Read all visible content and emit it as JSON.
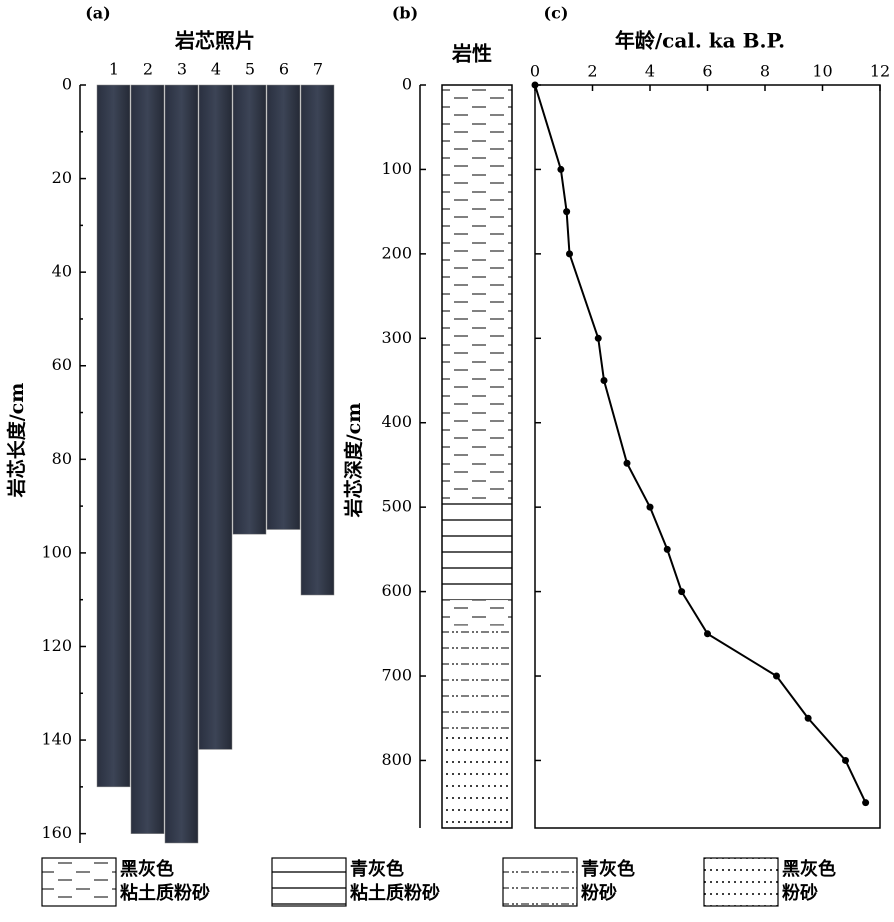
{
  "chart_data": [
    {
      "type": "core-photo",
      "panel_label": "(a)",
      "title": "岩芯照片",
      "ylabel": "岩芯长度/cm",
      "categories": [
        "1",
        "2",
        "3",
        "4",
        "5",
        "6",
        "7"
      ],
      "values": [
        150,
        160,
        162,
        142,
        96,
        95,
        109
      ],
      "ylim": [
        0,
        162
      ],
      "yticks": [
        0,
        20,
        40,
        60,
        80,
        100,
        120,
        140,
        160
      ]
    },
    {
      "type": "lithology",
      "panel_label": "(b)",
      "title": "岩性",
      "ylabel": "岩芯深度/cm",
      "layers": [
        {
          "from": 0,
          "to": 490,
          "pattern": "dash"
        },
        {
          "from": 490,
          "to": 610,
          "pattern": "line"
        },
        {
          "from": 610,
          "to": 640,
          "pattern": "dash"
        },
        {
          "from": 640,
          "to": 770,
          "pattern": "dashdot"
        },
        {
          "from": 770,
          "to": 880,
          "pattern": "dots"
        }
      ],
      "legend": [
        {
          "pattern": "dash",
          "lines": [
            "黑灰色",
            "粘土质粉砂"
          ]
        },
        {
          "pattern": "line",
          "lines": [
            "青灰色",
            "粘土质粉砂"
          ]
        },
        {
          "pattern": "dashdot",
          "lines": [
            "青灰色",
            "粉砂"
          ]
        },
        {
          "pattern": "dots",
          "lines": [
            "黑灰色",
            "粉砂"
          ]
        }
      ],
      "ylim": [
        0,
        880
      ],
      "yticks": [
        0,
        100,
        200,
        300,
        400,
        500,
        600,
        700,
        800
      ]
    },
    {
      "type": "line",
      "panel_label": "(c)",
      "xlabel": "年龄/cal. ka B.P.",
      "color": "#000000",
      "x": [
        0,
        0.9,
        1.1,
        1.2,
        2.2,
        2.4,
        3.2,
        4,
        4.6,
        5.1,
        6,
        8.4,
        9.5,
        10.8,
        11.5
      ],
      "values": [
        0,
        100,
        150,
        200,
        300,
        350,
        448,
        500,
        550,
        600,
        650,
        700,
        750,
        800,
        850
      ],
      "xlim": [
        0,
        12
      ],
      "xticks": [
        0,
        2,
        4,
        6,
        8,
        10,
        12
      ],
      "ylim": [
        0,
        880
      ],
      "yticks": [
        0,
        100,
        200,
        300,
        400,
        500,
        600,
        700,
        800
      ]
    }
  ]
}
